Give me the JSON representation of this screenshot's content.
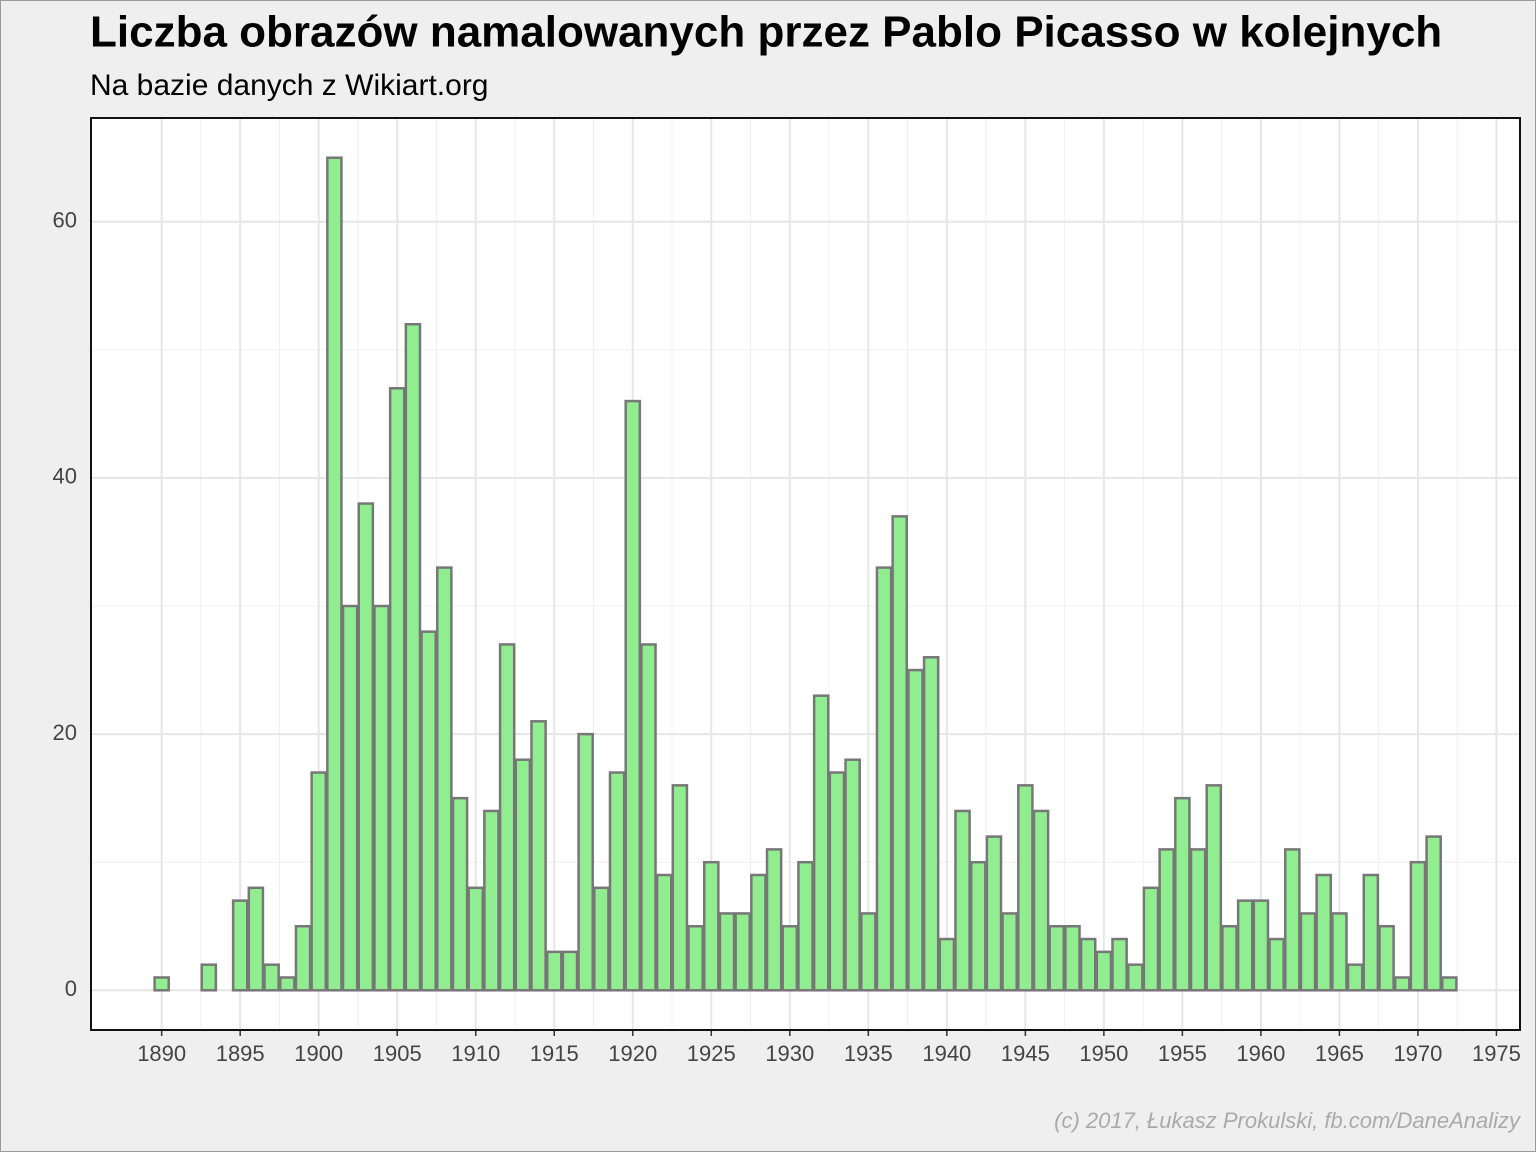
{
  "chart_data": {
    "type": "bar",
    "title": "Liczba obrazów namalowanych przez Pablo Picasso w kolejnych",
    "subtitle": "Na bazie danych z Wikiart.org",
    "caption": "(c) 2017, Łukasz Prokulski, fb.com/DaneAnalizy",
    "x": [
      1890,
      1893,
      1895,
      1896,
      1897,
      1898,
      1899,
      1900,
      1901,
      1902,
      1903,
      1904,
      1905,
      1906,
      1907,
      1908,
      1909,
      1910,
      1911,
      1912,
      1913,
      1914,
      1915,
      1916,
      1917,
      1918,
      1919,
      1920,
      1921,
      1922,
      1923,
      1924,
      1925,
      1926,
      1927,
      1928,
      1929,
      1930,
      1931,
      1932,
      1933,
      1934,
      1935,
      1936,
      1937,
      1938,
      1939,
      1940,
      1941,
      1942,
      1943,
      1944,
      1945,
      1946,
      1947,
      1948,
      1949,
      1950,
      1951,
      1952,
      1953,
      1954,
      1955,
      1956,
      1957,
      1958,
      1959,
      1960,
      1961,
      1962,
      1963,
      1964,
      1965,
      1966,
      1967,
      1968,
      1969,
      1970,
      1971,
      1972
    ],
    "values": [
      1,
      2,
      7,
      8,
      2,
      1,
      5,
      17,
      65,
      30,
      38,
      30,
      47,
      52,
      28,
      33,
      15,
      8,
      14,
      27,
      18,
      21,
      3,
      3,
      20,
      8,
      17,
      46,
      27,
      9,
      16,
      5,
      10,
      6,
      6,
      9,
      11,
      5,
      10,
      23,
      17,
      18,
      6,
      33,
      37,
      25,
      26,
      4,
      14,
      10,
      12,
      6,
      16,
      14,
      5,
      5,
      4,
      3,
      4,
      2,
      8,
      11,
      15,
      11,
      16,
      5,
      7,
      7,
      4,
      11,
      6,
      9,
      6,
      2,
      9,
      5,
      1,
      10,
      12,
      1
    ],
    "color": "#90ee90",
    "edgecolor": "#777777",
    "xlim": [
      1885.5,
      1976.5
    ],
    "xticks": [
      1890,
      1895,
      1900,
      1905,
      1910,
      1915,
      1920,
      1925,
      1930,
      1935,
      1940,
      1945,
      1950,
      1955,
      1960,
      1965,
      1970,
      1975
    ],
    "ylim": [
      -3.1,
      68.1
    ],
    "yticks": [
      0,
      20,
      40,
      60
    ],
    "grid": true
  }
}
